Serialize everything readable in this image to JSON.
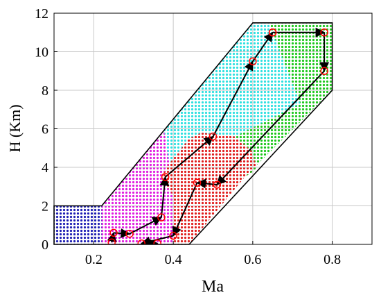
{
  "chart_data": {
    "type": "scatter",
    "title": "",
    "xlabel": "Ma",
    "ylabel": "H (Km)",
    "xlim": [
      0.1,
      0.9
    ],
    "ylim": [
      0,
      12
    ],
    "xticks": [
      0.2,
      0.4,
      0.6,
      0.8
    ],
    "xtick_labels": [
      "0.2",
      "0.4",
      "0.6",
      "0.8"
    ],
    "yticks": [
      0,
      2,
      4,
      6,
      8,
      10,
      12
    ],
    "ytick_labels": [
      "0",
      "2",
      "4",
      "6",
      "8",
      "10",
      "12"
    ],
    "grid": true,
    "legend": "none",
    "envelope": [
      [
        0.1,
        0
      ],
      [
        0.1,
        2
      ],
      [
        0.22,
        2
      ],
      [
        0.6,
        11.5
      ],
      [
        0.8,
        11.5
      ],
      [
        0.8,
        8
      ],
      [
        0.44,
        0
      ]
    ],
    "regions": [
      {
        "color": "#1f1fb4",
        "polygon": [
          [
            0.1,
            0
          ],
          [
            0.1,
            2
          ],
          [
            0.22,
            2
          ],
          [
            0.22,
            0
          ]
        ]
      },
      {
        "color": "#e01ee0",
        "polygon": [
          [
            0.22,
            0
          ],
          [
            0.22,
            2
          ],
          [
            0.375,
            6.2
          ],
          [
            0.39,
            4.2
          ],
          [
            0.37,
            3.5
          ],
          [
            0.4,
            2.5
          ],
          [
            0.4,
            0
          ]
        ]
      },
      {
        "color": "#2fe0e0",
        "polygon": [
          [
            0.375,
            6.2
          ],
          [
            0.6,
            11.5
          ],
          [
            0.64,
            11.5
          ],
          [
            0.72,
            7.3
          ],
          [
            0.555,
            5.6
          ],
          [
            0.47,
            5.8
          ],
          [
            0.44,
            5.5
          ],
          [
            0.39,
            4.2
          ]
        ]
      },
      {
        "color": "#e01e1e",
        "polygon": [
          [
            0.4,
            0
          ],
          [
            0.4,
            2.5
          ],
          [
            0.37,
            3.5
          ],
          [
            0.39,
            4.2
          ],
          [
            0.44,
            5.5
          ],
          [
            0.47,
            5.8
          ],
          [
            0.555,
            5.6
          ],
          [
            0.6,
            4.8
          ],
          [
            0.61,
            3.9
          ],
          [
            0.58,
            3.5
          ],
          [
            0.44,
            0
          ]
        ]
      },
      {
        "color": "#1ec81e",
        "polygon": [
          [
            0.64,
            11.5
          ],
          [
            0.8,
            11.5
          ],
          [
            0.8,
            8
          ],
          [
            0.58,
            3.5
          ],
          [
            0.61,
            3.9
          ],
          [
            0.6,
            4.8
          ],
          [
            0.555,
            5.6
          ],
          [
            0.72,
            7.3
          ]
        ]
      }
    ],
    "path": [
      {
        "x": 0.65,
        "y": 11.0
      },
      {
        "x": 0.78,
        "y": 11.0
      },
      {
        "x": 0.78,
        "y": 9.0
      },
      {
        "x": 0.51,
        "y": 3.1
      },
      {
        "x": 0.46,
        "y": 3.2
      },
      {
        "x": 0.4,
        "y": 0.45
      },
      {
        "x": 0.32,
        "y": 0.05
      },
      {
        "x": 0.36,
        "y": 0.05
      }
    ],
    "path2": [
      {
        "x": 0.245,
        "y": 0.1
      },
      {
        "x": 0.25,
        "y": 0.6
      },
      {
        "x": 0.29,
        "y": 0.55
      },
      {
        "x": 0.37,
        "y": 1.4
      },
      {
        "x": 0.38,
        "y": 3.5
      },
      {
        "x": 0.5,
        "y": 5.6
      },
      {
        "x": 0.6,
        "y": 9.5
      },
      {
        "x": 0.65,
        "y": 11.0
      }
    ],
    "path1_color": "#000000",
    "point_color": "#ff0000"
  }
}
